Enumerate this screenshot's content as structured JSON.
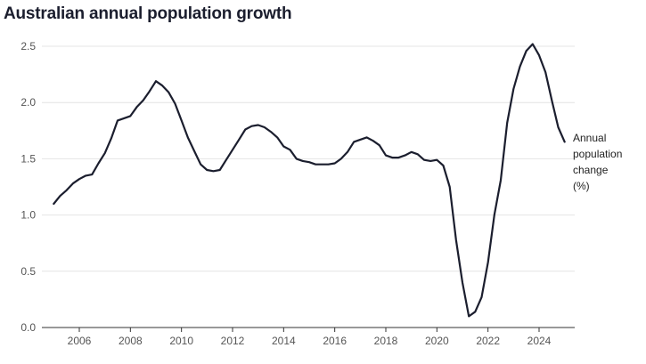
{
  "title": "Australian annual population growth",
  "chart_data": {
    "type": "line",
    "title": "Australian annual population growth",
    "xlabel": "",
    "ylabel": "",
    "xlim": [
      2004.9,
      2025.3
    ],
    "ylim": [
      0,
      2.6
    ],
    "grid": true,
    "line_color": "#1b1e2e",
    "grid_color": "#e4e4e4",
    "yticks": [
      0,
      0.5,
      1,
      1.5,
      2,
      2.5
    ],
    "ytick_labels": [
      "0.0",
      "0.5",
      "1.0",
      "1.5",
      "2.0",
      "2.5"
    ],
    "xticks": [
      2006,
      2008,
      2010,
      2012,
      2014,
      2016,
      2018,
      2020,
      2022,
      2024
    ],
    "xtick_labels": [
      "2006",
      "2008",
      "2010",
      "2012",
      "2014",
      "2016",
      "2018",
      "2020",
      "2022",
      "2024"
    ],
    "series": [
      {
        "name": "Annual population change (%)",
        "label_lines": [
          "Annual",
          "population",
          "change",
          "(%)"
        ],
        "x": [
          2005.0,
          2005.25,
          2005.5,
          2005.75,
          2006.0,
          2006.25,
          2006.5,
          2006.75,
          2007.0,
          2007.25,
          2007.5,
          2007.75,
          2008.0,
          2008.25,
          2008.5,
          2008.75,
          2009.0,
          2009.25,
          2009.5,
          2009.75,
          2010.0,
          2010.25,
          2010.5,
          2010.75,
          2011.0,
          2011.25,
          2011.5,
          2011.75,
          2012.0,
          2012.25,
          2012.5,
          2012.75,
          2013.0,
          2013.25,
          2013.5,
          2013.75,
          2014.0,
          2014.25,
          2014.5,
          2014.75,
          2015.0,
          2015.25,
          2015.5,
          2015.75,
          2016.0,
          2016.25,
          2016.5,
          2016.75,
          2017.0,
          2017.25,
          2017.5,
          2017.75,
          2018.0,
          2018.25,
          2018.5,
          2018.75,
          2019.0,
          2019.25,
          2019.5,
          2019.75,
          2020.0,
          2020.25,
          2020.5,
          2020.75,
          2021.0,
          2021.25,
          2021.5,
          2021.75,
          2022.0,
          2022.25,
          2022.5,
          2022.75,
          2023.0,
          2023.25,
          2023.5,
          2023.75,
          2024.0,
          2024.25,
          2024.5,
          2024.75,
          2025.0
        ],
        "values": [
          1.1,
          1.17,
          1.22,
          1.28,
          1.32,
          1.35,
          1.36,
          1.46,
          1.55,
          1.68,
          1.84,
          1.86,
          1.88,
          1.96,
          2.02,
          2.1,
          2.19,
          2.15,
          2.09,
          1.99,
          1.84,
          1.69,
          1.57,
          1.45,
          1.4,
          1.39,
          1.4,
          1.49,
          1.58,
          1.67,
          1.76,
          1.79,
          1.8,
          1.78,
          1.74,
          1.69,
          1.61,
          1.58,
          1.5,
          1.48,
          1.47,
          1.45,
          1.45,
          1.45,
          1.46,
          1.5,
          1.56,
          1.65,
          1.67,
          1.69,
          1.66,
          1.62,
          1.53,
          1.51,
          1.51,
          1.53,
          1.56,
          1.54,
          1.49,
          1.48,
          1.49,
          1.44,
          1.25,
          0.78,
          0.4,
          0.1,
          0.14,
          0.27,
          0.58,
          1.0,
          1.31,
          1.82,
          2.12,
          2.32,
          2.46,
          2.52,
          2.42,
          2.27,
          2.02,
          1.78,
          1.65
        ]
      }
    ]
  }
}
